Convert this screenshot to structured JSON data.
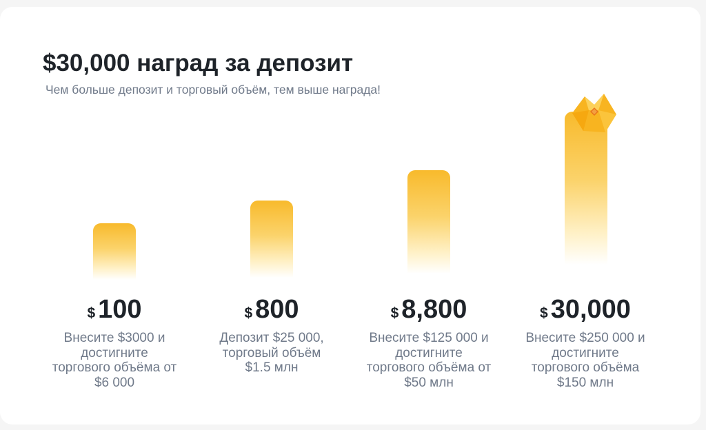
{
  "header": {
    "title": "$30,000 наград за депозит",
    "subtitle": "Чем больше депозит и торговый объём, тем выше награда!"
  },
  "colors": {
    "bar_top": "#f8ba2c",
    "bar_mid": "#fbd36b",
    "text_primary": "#1e2329",
    "text_secondary": "#707a8a"
  },
  "tiers": [
    {
      "currency": "$",
      "amount": "100",
      "description_lines": [
        "Внесите $3000 и",
        "достигните",
        "торгового объёма от",
        "$6 000"
      ]
    },
    {
      "currency": "$",
      "amount": "800",
      "description_lines": [
        "Депозит $25 000,",
        "торговый объём",
        "$1.5 млн"
      ]
    },
    {
      "currency": "$",
      "amount": "8,800",
      "description_lines": [
        "Внесите $125 000 и",
        "достигните",
        "торгового объёма от",
        "$50 млн"
      ]
    },
    {
      "currency": "$",
      "amount": "30,000",
      "description_lines": [
        "Внесите $250 000 и",
        "достигните",
        "торгового объёма",
        "$150 млн"
      ]
    }
  ],
  "decor": {
    "top_tier_icon": "crown-icon"
  }
}
